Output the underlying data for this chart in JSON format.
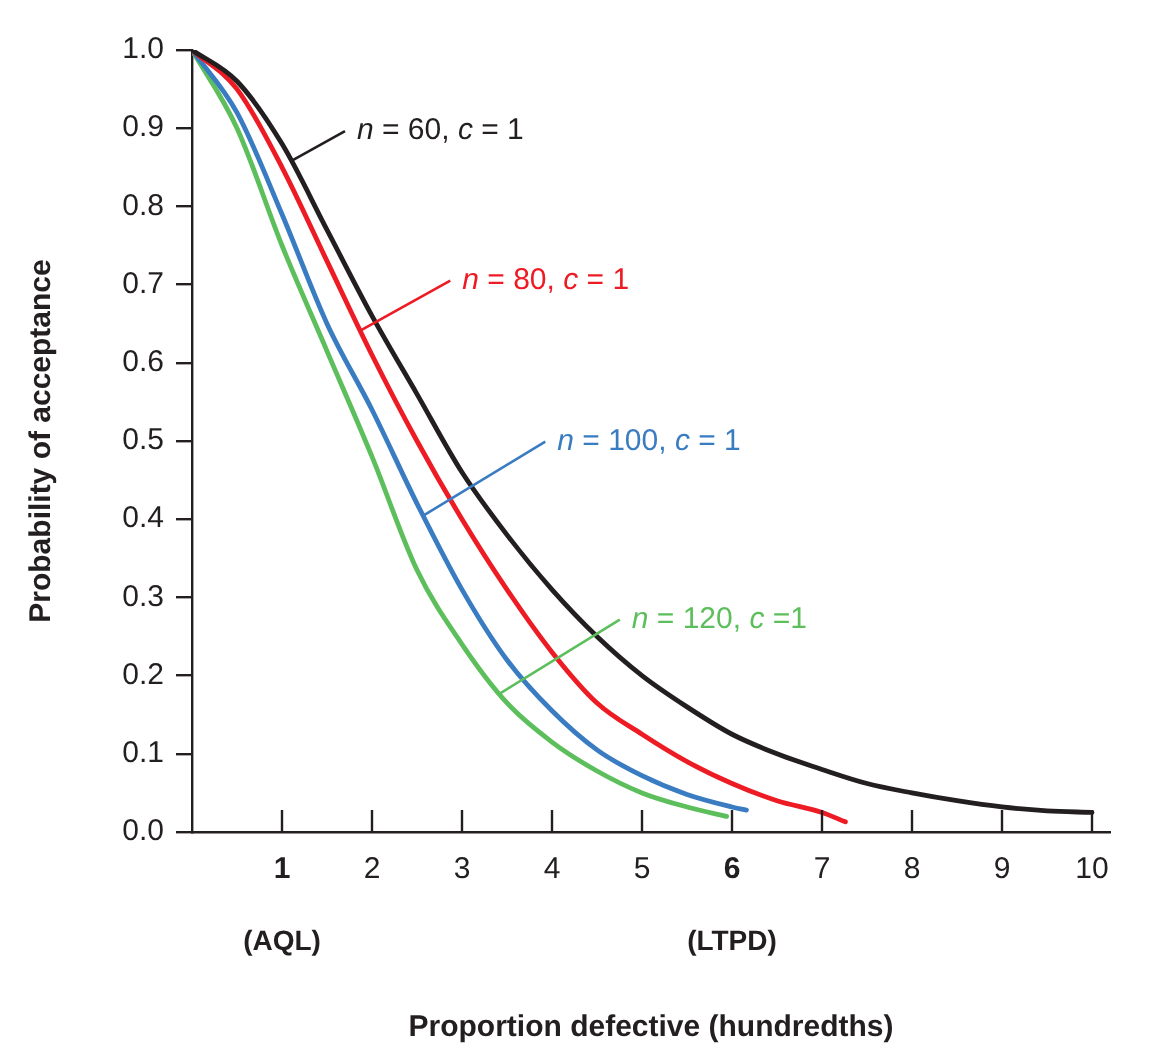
{
  "chart_data": {
    "type": "line",
    "xlabel": "Proportion defective (hundredths)",
    "ylabel": "Probability of acceptance",
    "xlim": [
      0,
      10.2
    ],
    "xticks": [
      1,
      2,
      3,
      4,
      5,
      6,
      7,
      8,
      9,
      10
    ],
    "ylim": [
      0,
      1
    ],
    "yticks": [
      {
        "value": 0,
        "label": "0.0"
      },
      0.1,
      0.2,
      0.3,
      0.4,
      0.5,
      0.6,
      0.7,
      0.8,
      0.9,
      {
        "value": 1,
        "label": "1.0"
      }
    ],
    "series": [
      {
        "name": "n = 60, c = 1",
        "color": "#231f20",
        "x": [
          0,
          0.5,
          1,
          1.5,
          2,
          2.5,
          3,
          3.5,
          4,
          4.5,
          5,
          5.5,
          6,
          6.5,
          7,
          7.5,
          8,
          8.5,
          9,
          9.5,
          10
        ],
        "values": [
          1,
          0.96,
          0.88,
          0.77,
          0.66,
          0.56,
          0.46,
          0.38,
          0.31,
          0.25,
          0.2,
          0.16,
          0.125,
          0.1,
          0.08,
          0.062,
          0.05,
          0.04,
          0.032,
          0.027,
          0.025
        ]
      },
      {
        "name": "n = 80, c = 1",
        "color": "#ed1c24",
        "x": [
          0,
          0.5,
          1,
          1.5,
          2,
          2.5,
          3,
          3.5,
          4,
          4.5,
          5,
          5.5,
          6,
          6.5,
          7,
          7.26
        ],
        "values": [
          1,
          0.95,
          0.85,
          0.73,
          0.61,
          0.5,
          0.4,
          0.31,
          0.23,
          0.165,
          0.125,
          0.09,
          0.062,
          0.04,
          0.025,
          0.013
        ]
      },
      {
        "name": "n = 100, c = 1",
        "color": "#3a7cc1",
        "x": [
          0,
          0.5,
          1,
          1.5,
          2,
          2.5,
          3,
          3.5,
          4,
          4.5,
          5,
          5.5,
          6,
          6.16
        ],
        "values": [
          1,
          0.92,
          0.79,
          0.65,
          0.54,
          0.42,
          0.31,
          0.22,
          0.155,
          0.105,
          0.072,
          0.048,
          0.032,
          0.028
        ]
      },
      {
        "name": "n = 120, c =1",
        "color": "#5cbf5c",
        "x": [
          0,
          0.5,
          1,
          1.5,
          2,
          2.5,
          3,
          3.5,
          4,
          4.5,
          5,
          5.5,
          5.94
        ],
        "values": [
          1,
          0.9,
          0.75,
          0.615,
          0.48,
          0.335,
          0.24,
          0.165,
          0.115,
          0.078,
          0.05,
          0.032,
          0.02
        ]
      }
    ],
    "annotations": [
      "(AQL)",
      "(LTPD)"
    ]
  }
}
